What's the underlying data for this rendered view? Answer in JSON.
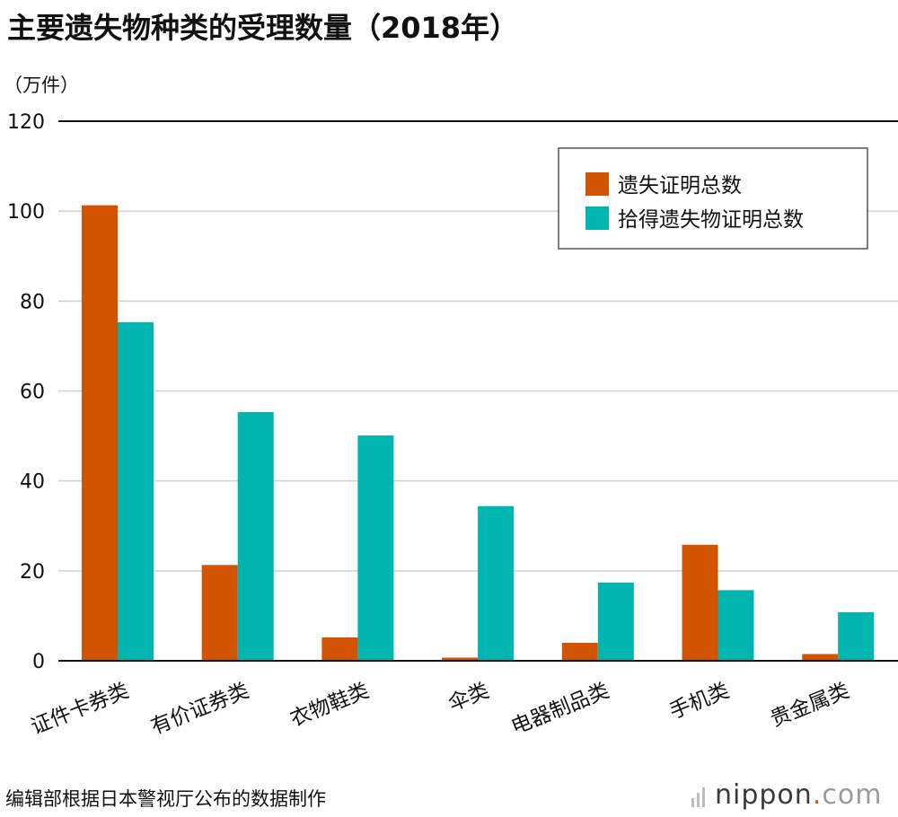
{
  "chart_data": {
    "type": "bar",
    "title": "主要遗失物种类的受理数量（2018年）",
    "ylabel": "（万件）",
    "xlabel": "",
    "ylim": [
      0,
      120
    ],
    "yticks": [
      0,
      20,
      40,
      60,
      80,
      100,
      120
    ],
    "grid": true,
    "legend_position": "top-right",
    "categories": [
      "证件卡券类",
      "有价证券类",
      "衣物鞋类",
      "伞类",
      "电器制品类",
      "手机类",
      "贵金属类"
    ],
    "series": [
      {
        "name": "遗失证明总数",
        "color": "#d35400",
        "values": [
          101.3,
          21.3,
          5.2,
          0.7,
          4.0,
          25.8,
          1.5
        ]
      },
      {
        "name": "拾得遗失物证明总数",
        "color": "#00b4b0",
        "values": [
          75.3,
          55.3,
          50.1,
          34.4,
          17.4,
          15.7,
          10.8
        ]
      }
    ]
  },
  "footer": {
    "source": "编辑部根据日本警视厅公布的数据制作",
    "brand_name": "nippon",
    "brand_dot": ".",
    "brand_tld": "com"
  }
}
